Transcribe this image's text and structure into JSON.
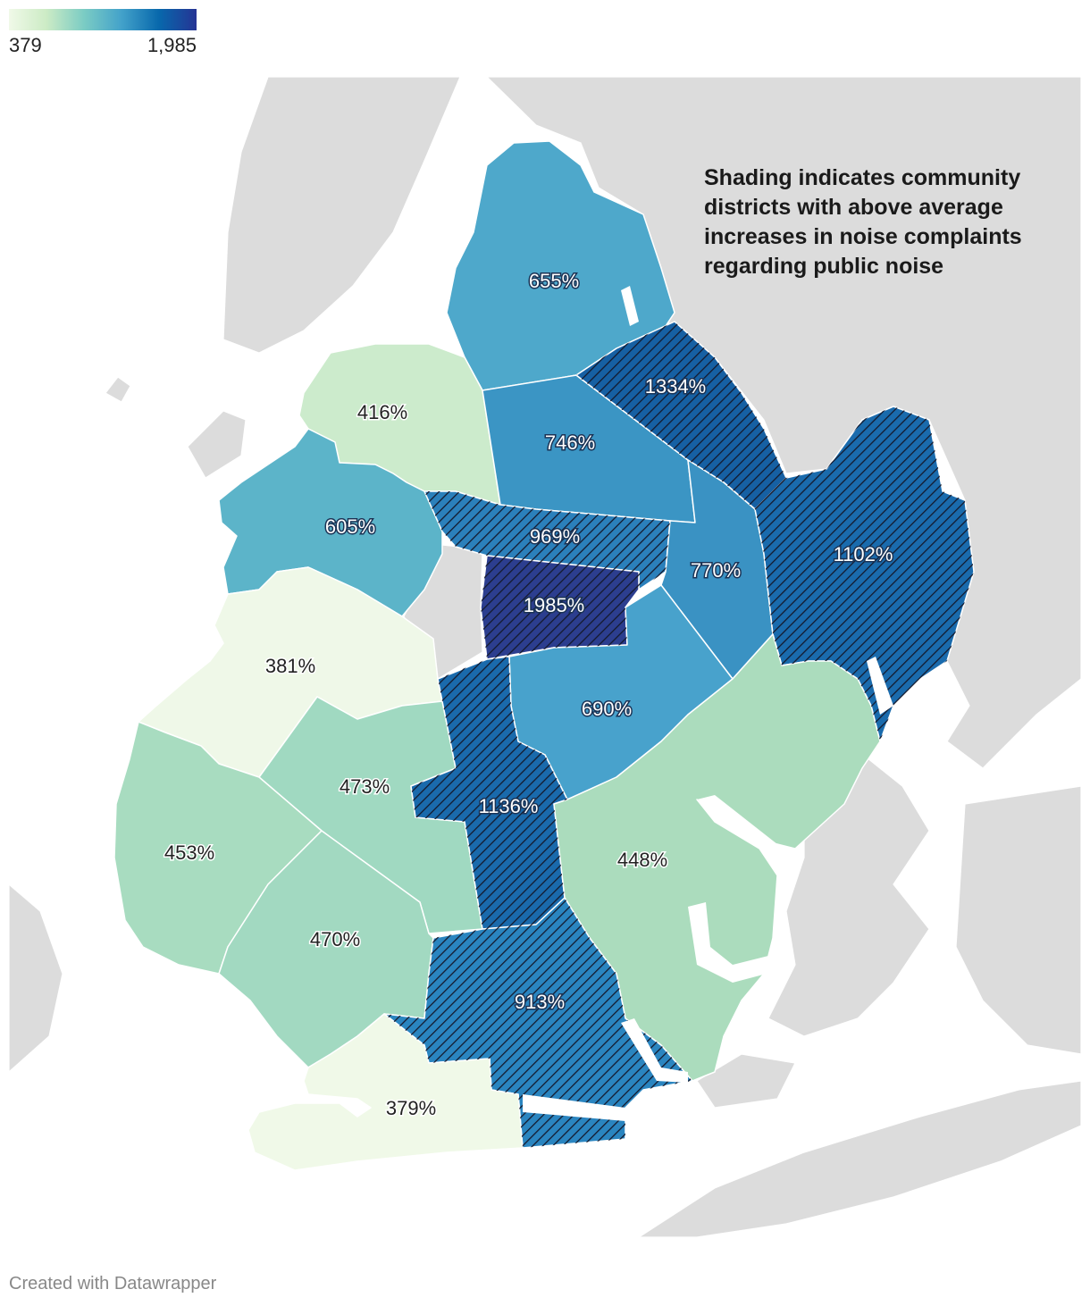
{
  "legend": {
    "min_label": "379",
    "max_label": "1,985",
    "min": 379,
    "max": 1985
  },
  "annotation": "Shading indicates community districts with above average increases in noise complaints regarding public noise",
  "credit": "Created with Datawrapper",
  "colors": {
    "land": "#dcdcdc",
    "water": "#ffffff",
    "hatch": "#1a1a2e"
  },
  "districts": [
    {
      "id": "d1",
      "label": "655%",
      "value": 655,
      "color": "#4ea8cb",
      "hatched": false
    },
    {
      "id": "d2",
      "label": "416%",
      "value": 416,
      "color": "#ccebcc",
      "hatched": false
    },
    {
      "id": "d3",
      "label": "746%",
      "value": 746,
      "color": "#3b95c4",
      "hatched": false
    },
    {
      "id": "d4",
      "label": "1334%",
      "value": 1334,
      "color": "#1660a3",
      "hatched": true
    },
    {
      "id": "d5",
      "label": "605%",
      "value": 605,
      "color": "#5cb4c9",
      "hatched": false
    },
    {
      "id": "d6",
      "label": "969%",
      "value": 969,
      "color": "#2b80bb",
      "hatched": true
    },
    {
      "id": "d7",
      "label": "770%",
      "value": 770,
      "color": "#3a92c3",
      "hatched": false
    },
    {
      "id": "d8",
      "label": "1102%",
      "value": 1102,
      "color": "#1a6bad",
      "hatched": true
    },
    {
      "id": "d9",
      "label": "1985%",
      "value": 1985,
      "color": "#2c3e8f",
      "hatched": true
    },
    {
      "id": "d10",
      "label": "381%",
      "value": 381,
      "color": "#eff8e8",
      "hatched": false
    },
    {
      "id": "d11",
      "label": "690%",
      "value": 690,
      "color": "#48a2cc",
      "hatched": false
    },
    {
      "id": "d12",
      "label": "473%",
      "value": 473,
      "color": "#a0d9c1",
      "hatched": false
    },
    {
      "id": "d13",
      "label": "1136%",
      "value": 1136,
      "color": "#1a6aac",
      "hatched": true
    },
    {
      "id": "d14",
      "label": "453%",
      "value": 453,
      "color": "#a8dcc0",
      "hatched": false
    },
    {
      "id": "d15",
      "label": "448%",
      "value": 448,
      "color": "#abdcbd",
      "hatched": false
    },
    {
      "id": "d16",
      "label": "470%",
      "value": 470,
      "color": "#a2d9c1",
      "hatched": false
    },
    {
      "id": "d17",
      "label": "913%",
      "value": 913,
      "color": "#2a85c0",
      "hatched": true
    },
    {
      "id": "d18",
      "label": "379%",
      "value": 379,
      "color": "#f0f9e8",
      "hatched": false
    }
  ]
}
